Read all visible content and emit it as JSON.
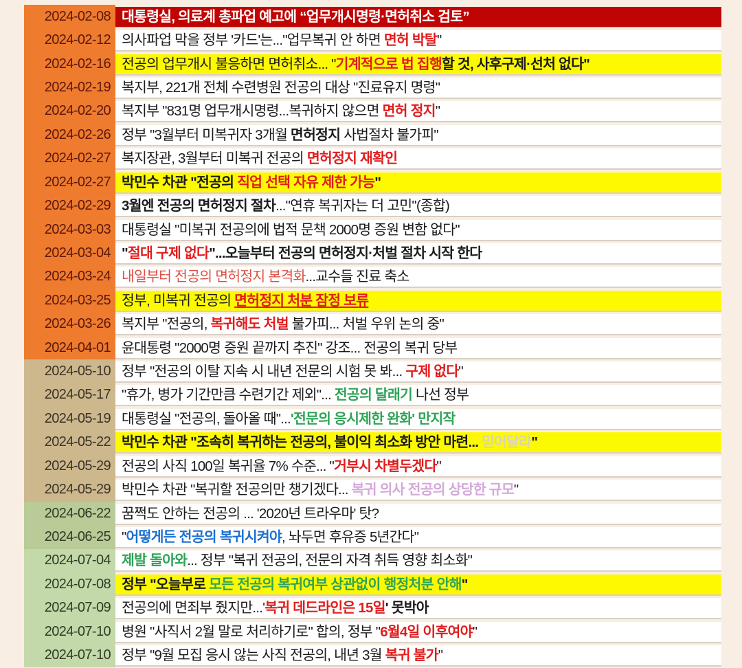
{
  "page": {
    "background": "#f9eee3",
    "description": "Timeline of Korean government / news headlines about the 2024 trainee-doctor (전공의) strike and license-suspension policy"
  },
  "palette": {
    "strip": {
      "white": "#ffffff",
      "yellow": "#fdf900",
      "darkred": "#c00404"
    },
    "group": {
      "orange": {
        "bg": "#ee7b2e",
        "fg": "#5c170a"
      },
      "tan": {
        "bg": "#cdb88e",
        "fg": "#3a3226"
      },
      "green1": {
        "bg": "#b9cb97",
        "fg": "#2f3b26"
      },
      "green2": {
        "bg": "#c4d9a9",
        "fg": "#2f3b26"
      }
    },
    "text": {
      "black": "#1b1b1b",
      "white": "#ffffff",
      "red": "#e11c1c",
      "softred": "#dd5146",
      "green": "#2fa356",
      "blue": "#1b70d2",
      "violet": "#d5a8da",
      "paleyellow": "#dcd6ad"
    }
  },
  "timeline": {
    "rows": [
      {
        "date": "2024-02-08",
        "group": "orange",
        "strip": "darkred",
        "segments": [
          {
            "t": "대통령실, 의료계 총파업 예고에 “업무개시명령·면허취소 검토”",
            "c": "white",
            "b": true
          }
        ]
      },
      {
        "date": "2024-02-12",
        "group": "orange",
        "strip": "white",
        "segments": [
          {
            "t": "의사파업 막을 정부 '카드'는...\"업무복귀 안 하면 ",
            "c": "black"
          },
          {
            "t": "면허 박탈",
            "c": "red",
            "b": true
          },
          {
            "t": "\"",
            "c": "black"
          }
        ]
      },
      {
        "date": "2024-02-16",
        "group": "orange",
        "strip": "yellow",
        "segments": [
          {
            "t": "전공의 업무개시 불응하면 면허취소... \"",
            "c": "black"
          },
          {
            "t": "기계적으로 법 집행",
            "c": "red",
            "b": true
          },
          {
            "t": "할 것, 사후구제·선처 없다\"",
            "c": "black",
            "b": true
          }
        ]
      },
      {
        "date": "2024-02-19",
        "group": "orange",
        "strip": "white",
        "segments": [
          {
            "t": "복지부, 221개 전체 수련병원 전공의 대상 \"진료유지 명령\"",
            "c": "black"
          }
        ]
      },
      {
        "date": "2024-02-20",
        "group": "orange",
        "strip": "white",
        "segments": [
          {
            "t": "복지부 \"831명 업무개시명령...복귀하지 않으면 ",
            "c": "black"
          },
          {
            "t": "면허 정지",
            "c": "red",
            "b": true
          },
          {
            "t": "\"",
            "c": "black"
          }
        ]
      },
      {
        "date": "2024-02-26",
        "group": "orange",
        "strip": "white",
        "segments": [
          {
            "t": "정부 \"3월부터 미복귀자 3개월 ",
            "c": "black"
          },
          {
            "t": "면허정지",
            "c": "black",
            "b": true
          },
          {
            "t": " 사법절차 불가피\"",
            "c": "black"
          }
        ]
      },
      {
        "date": "2024-02-27",
        "group": "orange",
        "strip": "white",
        "segments": [
          {
            "t": "복지장관, 3월부터 미복귀 전공의 ",
            "c": "black"
          },
          {
            "t": "면허정지 재확인",
            "c": "red",
            "b": true
          }
        ]
      },
      {
        "date": "2024-02-27",
        "group": "orange",
        "strip": "yellow",
        "segments": [
          {
            "t": "박민수 차관 \"전공의 ",
            "c": "black",
            "b": true
          },
          {
            "t": "직업 선택 자유 제한 가능",
            "c": "red",
            "b": true
          },
          {
            "t": "\"",
            "c": "black",
            "b": true
          }
        ]
      },
      {
        "date": "2024-02-29",
        "group": "orange",
        "strip": "white",
        "segments": [
          {
            "t": "3월엔 전공의 면허정지 절차",
            "c": "black",
            "b": true
          },
          {
            "t": "...\"연휴 복귀자는 더 고민\"(종합)",
            "c": "black"
          }
        ]
      },
      {
        "date": "2024-03-03",
        "group": "orange",
        "strip": "white",
        "segments": [
          {
            "t": "대통령실 \"미복귀 전공의에 법적 문책 2000명 증원 변함 없다\"",
            "c": "black"
          }
        ]
      },
      {
        "date": "2024-03-04",
        "group": "orange",
        "strip": "white",
        "segments": [
          {
            "t": "\"",
            "c": "black",
            "b": true
          },
          {
            "t": "절대 구제 없다",
            "c": "red",
            "b": true
          },
          {
            "t": "\"...오늘부터 전공의 면허정지·처벌 절차 시작 한다",
            "c": "black",
            "b": true
          }
        ]
      },
      {
        "date": "2024-03-24",
        "group": "orange",
        "strip": "white",
        "segments": [
          {
            "t": "내일부터 전공의 면허정지 본격화",
            "c": "softred"
          },
          {
            "t": "...교수들 진료 축소",
            "c": "black"
          }
        ]
      },
      {
        "date": "2024-03-25",
        "group": "orange",
        "strip": "yellow",
        "segments": [
          {
            "t": "정부, 미복귀 전공의 ",
            "c": "black"
          },
          {
            "t": "면허정지 처분 잠정 보류",
            "c": "red",
            "b": true,
            "u": true
          }
        ]
      },
      {
        "date": "2024-03-26",
        "group": "orange",
        "strip": "white",
        "segments": [
          {
            "t": "복지부 \"전공의, ",
            "c": "black"
          },
          {
            "t": "복귀해도 처벌",
            "c": "red",
            "b": true
          },
          {
            "t": " 불가피... 처벌 우위 논의 중\"",
            "c": "black"
          }
        ]
      },
      {
        "date": "2024-04-01",
        "group": "orange",
        "strip": "white",
        "segments": [
          {
            "t": "윤대통령 \"2000명 증원 끝까지 추진\" 강조... 전공의 복귀 당부",
            "c": "black"
          }
        ]
      },
      {
        "date": "2024-05-10",
        "group": "tan",
        "strip": "white",
        "segments": [
          {
            "t": "정부 \"전공의 이탈 지속 시 내년 전문의 시험 못 봐... ",
            "c": "black"
          },
          {
            "t": "구제 없다",
            "c": "red",
            "b": true
          },
          {
            "t": "\"",
            "c": "black"
          }
        ]
      },
      {
        "date": "2024-05-17",
        "group": "tan",
        "strip": "white",
        "segments": [
          {
            "t": "\"휴가, 병가 기간만큼 수련기간 제외\"... ",
            "c": "black"
          },
          {
            "t": "전공의 달래기",
            "c": "green",
            "b": true
          },
          {
            "t": " 나선 정부",
            "c": "black"
          }
        ]
      },
      {
        "date": "2024-05-19",
        "group": "tan",
        "strip": "white",
        "segments": [
          {
            "t": "대통령실 \"전공의, 돌아올 때\"...",
            "c": "black"
          },
          {
            "t": "'전문의 응시제한 완화' 만지작",
            "c": "green",
            "b": true
          }
        ]
      },
      {
        "date": "2024-05-22",
        "group": "tan",
        "strip": "yellow",
        "segments": [
          {
            "t": "박민수 차관 \"조속히 복귀하는 전공의, 불이익 최소화 방안 마련... ",
            "c": "black",
            "b": true
          },
          {
            "t": "믿어달라",
            "c": "paleyellow",
            "b": true
          },
          {
            "t": "\"",
            "c": "black",
            "b": true
          }
        ]
      },
      {
        "date": "2024-05-29",
        "group": "tan",
        "strip": "white",
        "segments": [
          {
            "t": "전공의 사직 100일 복귀율 7% 수준... \"",
            "c": "black"
          },
          {
            "t": "거부시 차별두겠다",
            "c": "red",
            "b": true
          },
          {
            "t": "\"",
            "c": "black"
          }
        ]
      },
      {
        "date": "2024-05-29",
        "group": "tan",
        "strip": "white",
        "segments": [
          {
            "t": "박민수 차관 \"복귀할 전공의만 챙기겠다... ",
            "c": "black"
          },
          {
            "t": "복귀 의사 전공의 상당한 규모",
            "c": "violet",
            "b": true
          },
          {
            "t": "\"",
            "c": "black"
          }
        ]
      },
      {
        "date": "2024-06-22",
        "group": "green1",
        "strip": "white",
        "segments": [
          {
            "t": "꿈쩍도 안하는 전공의 ... '2020년 트라우마' 탓?",
            "c": "black"
          }
        ]
      },
      {
        "date": "2024-06-25",
        "group": "green1",
        "strip": "white",
        "segments": [
          {
            "t": "\"",
            "c": "black"
          },
          {
            "t": "어떻게든 전공의 복귀시켜야",
            "c": "blue",
            "b": true
          },
          {
            "t": ", 놔두면 후유증 5년간다\"",
            "c": "black"
          }
        ]
      },
      {
        "date": "2024-07-04",
        "group": "green2",
        "strip": "white",
        "segments": [
          {
            "t": "제발 돌아와",
            "c": "green",
            "b": true
          },
          {
            "t": "... 정부 \"복귀 전공의, 전문의 자격 취득 영향 최소화\"",
            "c": "black"
          }
        ]
      },
      {
        "date": "2024-07-08",
        "group": "green2",
        "strip": "yellow",
        "segments": [
          {
            "t": "정부 \"오늘부로 ",
            "c": "black",
            "b": true
          },
          {
            "t": "모든 전공의 복귀여부 상관없이 행정처분 안해",
            "c": "green",
            "b": true
          },
          {
            "t": "\"",
            "c": "black",
            "b": true
          }
        ]
      },
      {
        "date": "2024-07-09",
        "group": "green2",
        "strip": "white",
        "segments": [
          {
            "t": "전공의에 면죄부 줬지만...'",
            "c": "black"
          },
          {
            "t": "복귀 데드라인은 15일",
            "c": "red",
            "b": true
          },
          {
            "t": "' 못박아",
            "c": "black",
            "b": true
          }
        ]
      },
      {
        "date": "2024-07-10",
        "group": "green2",
        "strip": "white",
        "segments": [
          {
            "t": "병원 \"사직서 2월 말로 처리하기로\" 합의, 정부 \"",
            "c": "black"
          },
          {
            "t": "6월4일 이후여야",
            "c": "red",
            "b": true
          },
          {
            "t": "\"",
            "c": "black"
          }
        ]
      },
      {
        "date": "2024-07-10",
        "group": "green2",
        "strip": "white",
        "segments": [
          {
            "t": "정부 \"9월 모집 응시 않는 사직 전공의, 내년 3월 ",
            "c": "black"
          },
          {
            "t": "복귀 불가",
            "c": "red",
            "b": true
          },
          {
            "t": "\"",
            "c": "black"
          }
        ]
      }
    ]
  }
}
